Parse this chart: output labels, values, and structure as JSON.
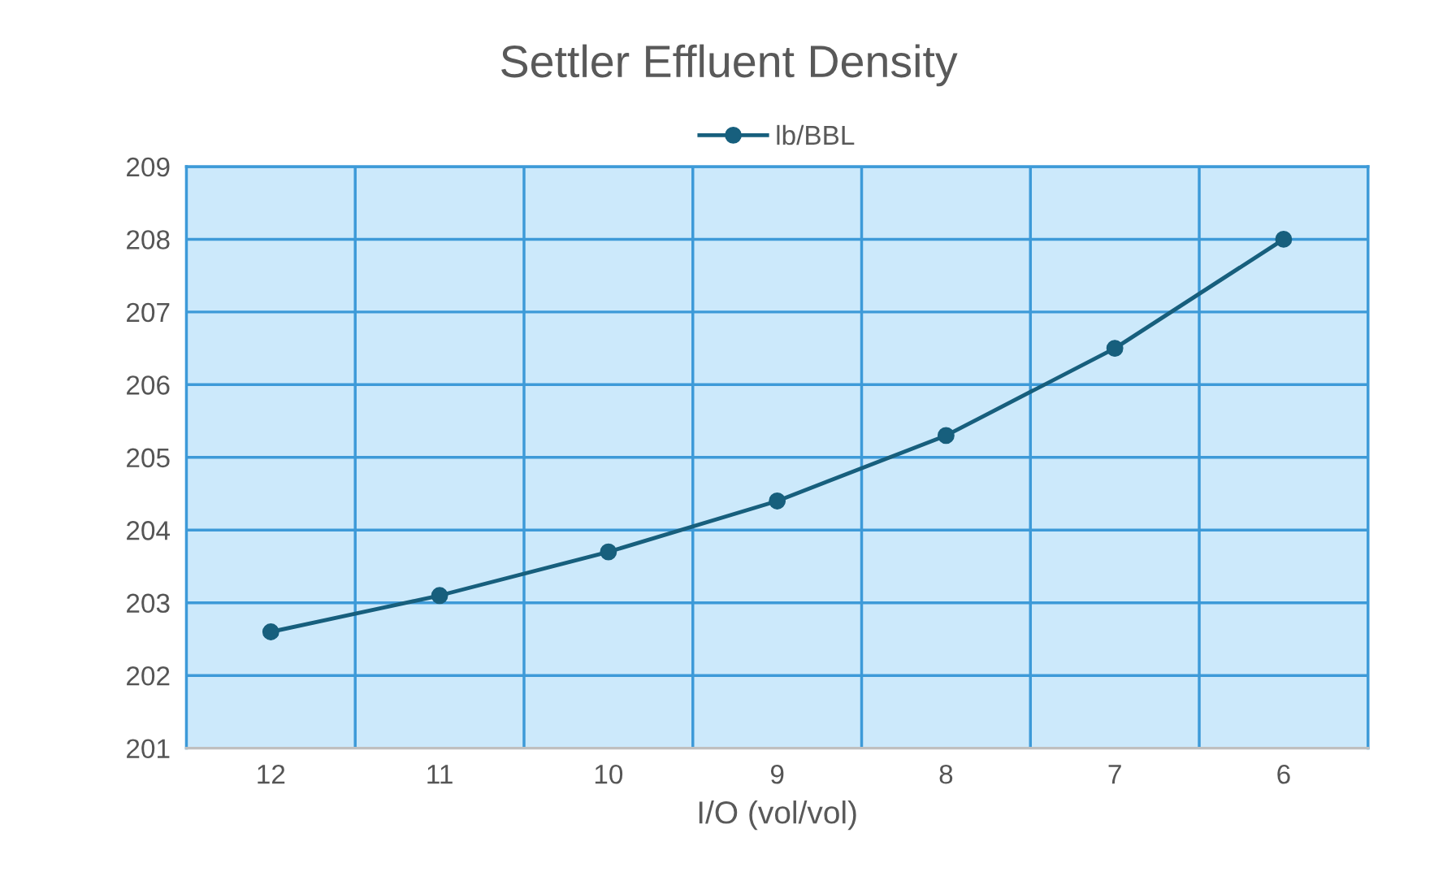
{
  "chart_data": {
    "type": "line",
    "title": "Settler Effluent Density",
    "xlabel": "I/O (vol/vol)",
    "categories": [
      "12",
      "11",
      "10",
      "9",
      "8",
      "7",
      "6"
    ],
    "series": [
      {
        "name": "lb/BBL",
        "color": "#175f7d",
        "values": [
          202.6,
          203.1,
          203.7,
          204.4,
          205.3,
          206.5,
          208.0
        ]
      }
    ],
    "ylim": [
      201,
      209
    ],
    "yticks": [
      201,
      202,
      203,
      204,
      205,
      206,
      207,
      208,
      209
    ],
    "grid": true,
    "legend": "top",
    "marker": "circle",
    "line_style": "solid"
  }
}
